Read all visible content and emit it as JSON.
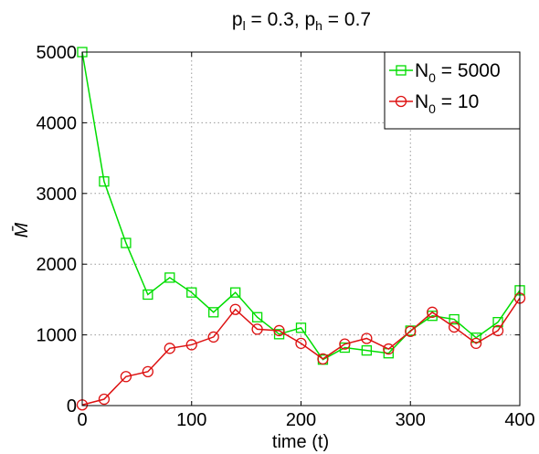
{
  "chart_data": {
    "type": "line",
    "title": {
      "p_l_symbol": "p",
      "p_l_sub": "l",
      "p_l_value": " = 0.3, ",
      "p_h_symbol": "p",
      "p_h_sub": "h",
      "p_h_value": " = 0.7"
    },
    "xlabel": "time (t)",
    "ylabel": "M̄",
    "xlim": [
      0,
      400
    ],
    "ylim": [
      0,
      5000
    ],
    "xticks": [
      0,
      100,
      200,
      300,
      400
    ],
    "yticks": [
      0,
      1000,
      2000,
      3000,
      4000,
      5000
    ],
    "grid": true,
    "legend_position": "top-right",
    "x": [
      0,
      20,
      40,
      60,
      80,
      100,
      120,
      140,
      160,
      180,
      200,
      220,
      240,
      260,
      280,
      300,
      320,
      340,
      360,
      380,
      400
    ],
    "series": [
      {
        "name_base": "N",
        "name_sub": "0",
        "name_rest": " = 5000",
        "color": "#00dd00",
        "marker": "square",
        "values": [
          5000,
          3170,
          2300,
          1570,
          1810,
          1600,
          1320,
          1600,
          1250,
          1010,
          1100,
          650,
          820,
          780,
          740,
          1060,
          1270,
          1220,
          960,
          1180,
          1630
        ]
      },
      {
        "name_base": "N",
        "name_sub": "0",
        "name_rest": " = 10",
        "color": "#dd1111",
        "marker": "circle",
        "values": [
          10,
          90,
          410,
          480,
          810,
          860,
          970,
          1360,
          1080,
          1060,
          880,
          660,
          870,
          950,
          800,
          1050,
          1320,
          1110,
          880,
          1060,
          1520
        ]
      }
    ]
  }
}
